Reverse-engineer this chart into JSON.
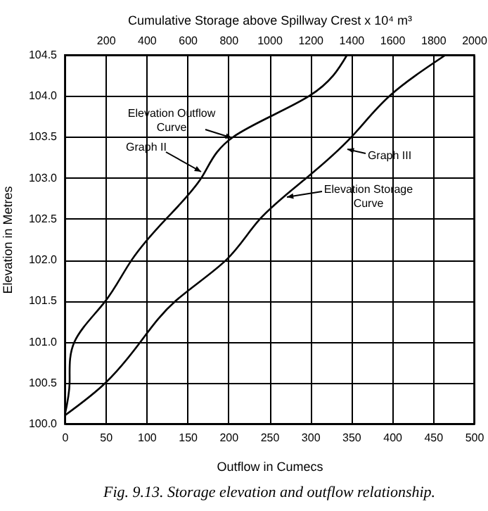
{
  "chart_data": {
    "type": "line",
    "title": "Fig. 9.13. Storage elevation and outflow relationship.",
    "xlabel": "Outflow in Cumecs",
    "x2label": "Cumulative Storage above Spillway Crest x 10⁴ m³",
    "ylabel": "Elevation in Metres",
    "xlim": [
      0,
      500
    ],
    "xticks": [
      0,
      50,
      100,
      150,
      200,
      250,
      300,
      350,
      400,
      450,
      500
    ],
    "x2lim": [
      0,
      2000
    ],
    "x2ticks": [
      200,
      400,
      600,
      800,
      1000,
      1200,
      1400,
      1600,
      1800,
      2000
    ],
    "ylim": [
      100,
      104.5
    ],
    "yticks": [
      {
        "value": 100,
        "label": "100.0"
      },
      100.5,
      {
        "value": 101,
        "label": "101.0"
      },
      101.5,
      {
        "value": 102,
        "label": "102.0"
      },
      102.5,
      {
        "value": 103,
        "label": "103.0"
      },
      103.5,
      {
        "value": 104,
        "label": "104.0"
      },
      104.5
    ],
    "grid": true,
    "line_style": "solid",
    "series": [
      {
        "color": "#000000",
        "x": [
          0,
          6,
          12,
          50,
          82,
          124,
          167,
          206,
          299,
          345
        ],
        "values": [
          100.1,
          100.5,
          101.0,
          101.5,
          102.0,
          102.5,
          103.0,
          103.5,
          104.0,
          104.5
        ]
      },
      {
        "color": "#000000",
        "axis": "x2",
        "x": [
          0,
          200,
          371,
          543,
          790,
          955,
          1182,
          1402,
          1588,
          1862
        ],
        "values": [
          100.1,
          100.5,
          101.0,
          101.5,
          102.0,
          102.5,
          103.0,
          103.5,
          104.0,
          104.5
        ]
      }
    ],
    "annotations": [
      "Elevation Outflow Curve",
      "Graph II",
      "Graph III",
      "Elevation Storage Curve"
    ]
  }
}
